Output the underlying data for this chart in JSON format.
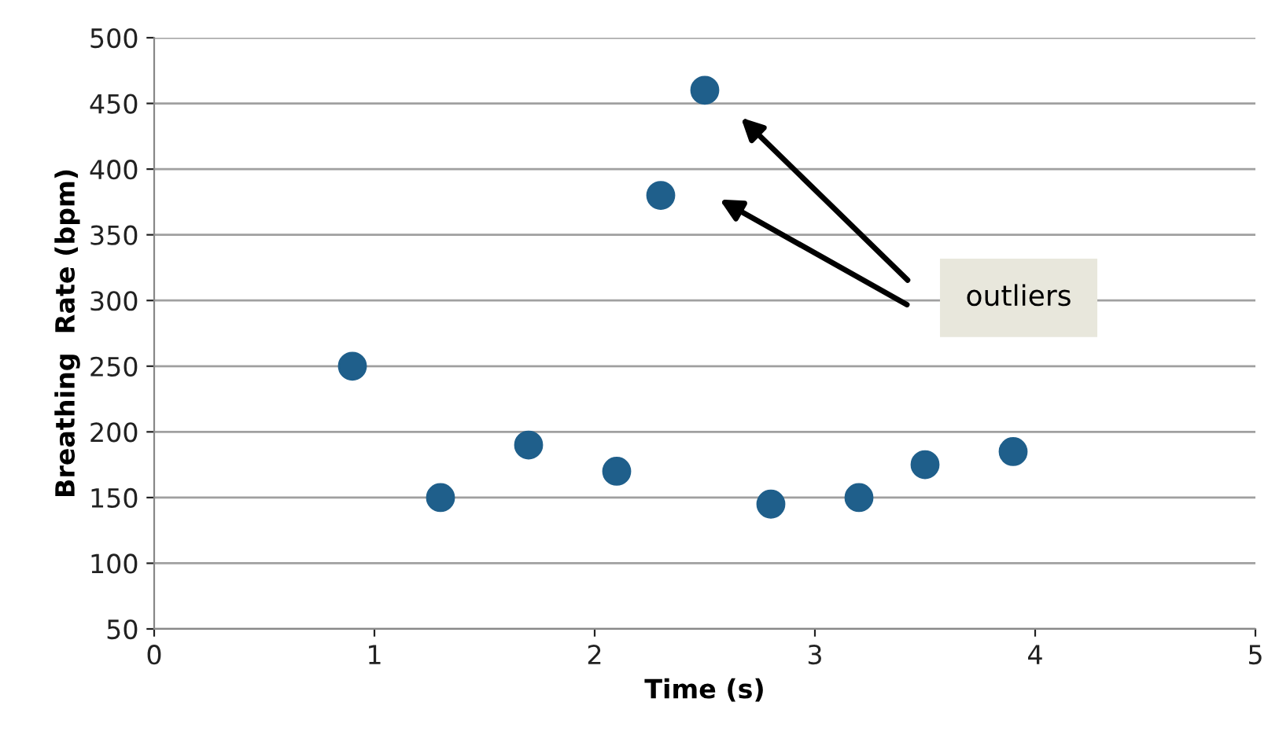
{
  "chart_data": {
    "type": "scatter",
    "xlabel": "Time (s)",
    "ylabel": "Breathing  Rate (bpm)",
    "x": [
      0.9,
      1.3,
      1.7,
      2.1,
      2.3,
      2.5,
      2.8,
      3.2,
      3.5,
      3.9
    ],
    "series": [
      {
        "color": "#1f5f8b",
        "values": [
          250,
          150,
          190,
          170,
          380,
          460,
          145,
          150,
          175,
          185
        ]
      }
    ],
    "xlim": [
      0,
      5
    ],
    "xticks": [
      0,
      1,
      2,
      3,
      4,
      5
    ],
    "ylim": [
      50,
      500
    ],
    "yticks": [
      50,
      100,
      150,
      200,
      250,
      300,
      350,
      400,
      450,
      500
    ],
    "grid": "y",
    "marker": "circle",
    "annotations": [
      "outliers"
    ]
  }
}
